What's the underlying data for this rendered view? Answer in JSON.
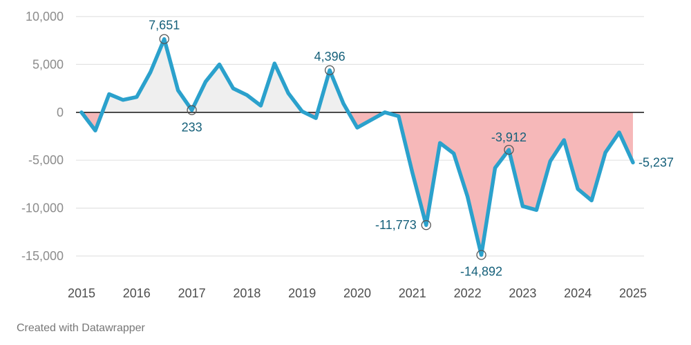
{
  "chart_data": {
    "type": "area",
    "x_unit": "year",
    "xlim": [
      2015,
      2025
    ],
    "ylim": [
      -15000,
      10000
    ],
    "y_ticks": [
      10000,
      5000,
      0,
      -5000,
      -10000,
      -15000
    ],
    "y_tick_labels": [
      "10,000",
      "5,000",
      "0",
      "-5,000",
      "-10,000",
      "-15,000"
    ],
    "x_ticks": [
      2015,
      2016,
      2017,
      2018,
      2019,
      2020,
      2021,
      2022,
      2023,
      2024,
      2025
    ],
    "x_tick_labels": [
      "2015",
      "2016",
      "2017",
      "2018",
      "2019",
      "2020",
      "2021",
      "2022",
      "2023",
      "2024",
      "2025"
    ],
    "grid": true,
    "series": [
      {
        "x": [
          2015.0,
          2015.25,
          2015.5,
          2015.75,
          2016.0,
          2016.25,
          2016.5,
          2016.75,
          2017.0,
          2017.25,
          2017.5,
          2017.75,
          2018.0,
          2018.25,
          2018.5,
          2018.75,
          2019.0,
          2019.25,
          2019.5,
          2019.75,
          2020.0,
          2020.25,
          2020.5,
          2020.75,
          2021.0,
          2021.25,
          2021.5,
          2021.75,
          2022.0,
          2022.25,
          2022.5,
          2022.75,
          2023.0,
          2023.25,
          2023.5,
          2023.75,
          2024.0,
          2024.25,
          2024.5,
          2024.75,
          2025.0
        ],
        "values": [
          0,
          -1900,
          1900,
          1300,
          1600,
          4200,
          7651,
          2300,
          233,
          3200,
          5000,
          2500,
          1800,
          700,
          5100,
          2000,
          100,
          -600,
          4396,
          900,
          -1600,
          -800,
          0,
          -400,
          -6300,
          -11773,
          -3200,
          -4300,
          -8800,
          -14892,
          -5800,
          -3912,
          -9800,
          -10200,
          -5100,
          -2900,
          -8000,
          -9200,
          -4200,
          -2100,
          -5237
        ]
      }
    ],
    "annotations": [
      {
        "x": 2016.5,
        "y": 7651,
        "label": "7,651"
      },
      {
        "x": 2017.0,
        "y": 233,
        "label": "233"
      },
      {
        "x": 2019.5,
        "y": 4396,
        "label": "4,396"
      },
      {
        "x": 2021.25,
        "y": -11773,
        "label": "-11,773"
      },
      {
        "x": 2022.25,
        "y": -14892,
        "label": "-14,892"
      },
      {
        "x": 2022.75,
        "y": -3912,
        "label": "-3,912"
      },
      {
        "x": 2025.0,
        "y": -5237,
        "label": "-5,237"
      }
    ],
    "colors": {
      "line": "#2ba1cc",
      "positive_fill": "#efefef",
      "negative_fill": "#f6b8b9",
      "annotation_text": "#15607a",
      "grid": "#e2e2e2",
      "zero_line": "#222222"
    }
  },
  "footer": {
    "credit": "Created with Datawrapper"
  }
}
